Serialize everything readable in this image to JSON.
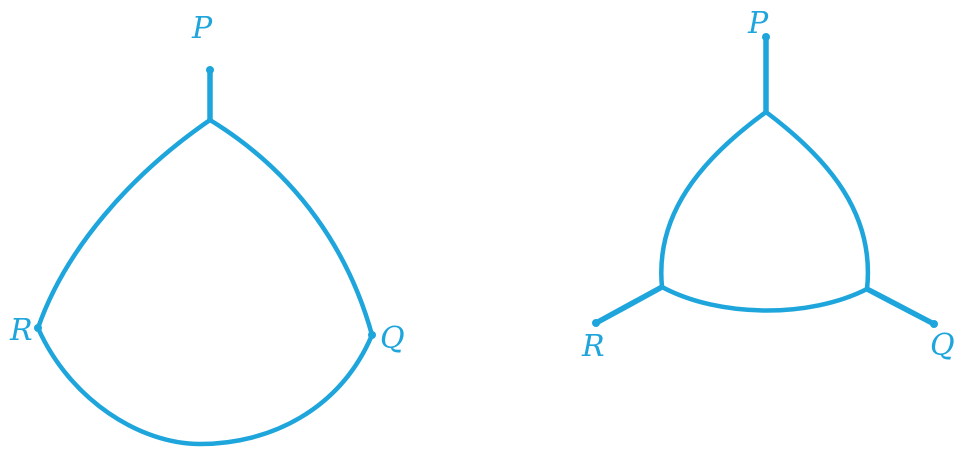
{
  "color": "#1ea5dc",
  "diagram_left": {
    "labels": {
      "p": "P",
      "q": "Q",
      "r": "R"
    }
  },
  "diagram_right": {
    "labels": {
      "p": "P",
      "q": "Q",
      "r": "R"
    }
  }
}
